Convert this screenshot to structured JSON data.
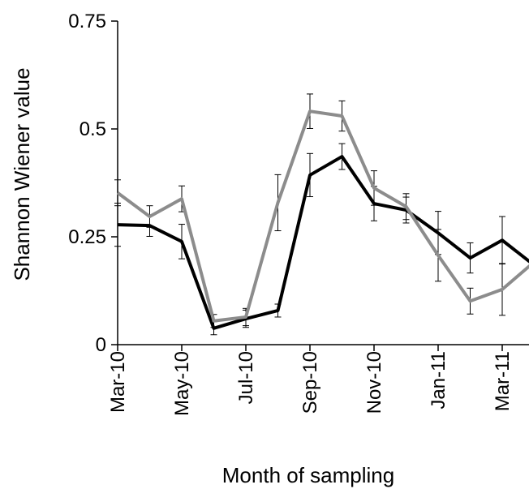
{
  "chart_data": {
    "type": "line",
    "x_label": "Month of sampling",
    "y_label": "Shannon Wiener value",
    "categories": [
      "Mar-10",
      null,
      "May-10",
      null,
      "Jul-10",
      null,
      "Sep-10",
      null,
      "Nov-10",
      null,
      "Jan-11",
      null,
      "Mar-11",
      null
    ],
    "series": [
      {
        "color": "#000000",
        "values": [
          0.278,
          0.276,
          0.239,
          0.038,
          0.06,
          0.079,
          0.393,
          0.436,
          0.327,
          0.312,
          0.259,
          0.201,
          0.242,
          0.184
        ],
        "errors": [
          0.05,
          0.025,
          0.04,
          0.015,
          0.02,
          0.015,
          0.05,
          0.03,
          0.04,
          0.03,
          0.05,
          0.035,
          0.055,
          0.02
        ]
      },
      {
        "color": "#8c8c8c",
        "values": [
          0.352,
          0.297,
          0.338,
          0.055,
          0.064,
          0.329,
          0.541,
          0.53,
          0.363,
          0.32,
          0.207,
          0.101,
          0.128,
          0.192
        ],
        "errors": [
          0.03,
          0.025,
          0.03,
          0.015,
          0.02,
          0.065,
          0.04,
          0.035,
          0.04,
          0.03,
          0.06,
          0.03,
          0.06,
          0.02
        ]
      }
    ],
    "ylim": [
      0,
      0.75
    ],
    "yticks": [
      0,
      0.25,
      0.5,
      0.75
    ]
  }
}
